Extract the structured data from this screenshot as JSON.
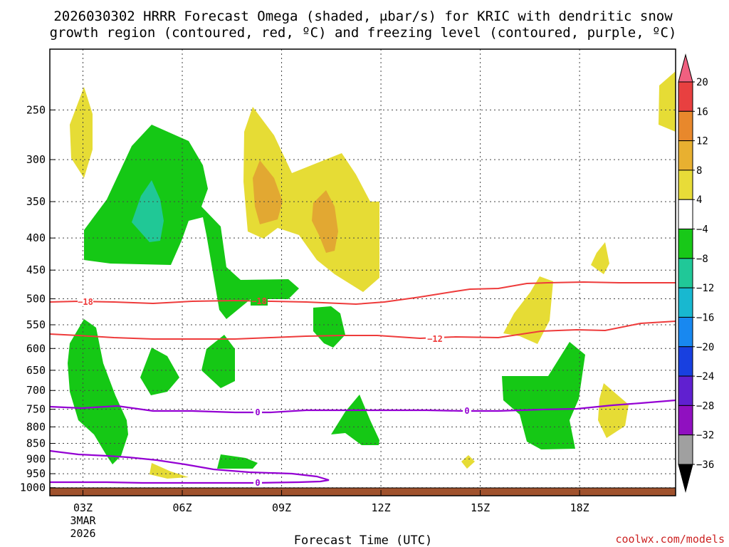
{
  "chart_data": {
    "type": "contour",
    "title_line1": "2026030302 HRRR Forecast Omega (shaded, μbar/s) for KRIC with dendritic snow",
    "title_line2": "growth region (contoured, red, ºC) and freezing level (contoured, purple, ºC)",
    "xlabel": "Forecast Time (UTC)",
    "credit": "coolwx.com/models",
    "x_ticks": [
      {
        "hour": 3,
        "label": "03Z",
        "sub1": "3MAR",
        "sub2": "2026"
      },
      {
        "hour": 6,
        "label": "06Z"
      },
      {
        "hour": 9,
        "label": "09Z"
      },
      {
        "hour": 12,
        "label": "12Z"
      },
      {
        "hour": 15,
        "label": "15Z"
      },
      {
        "hour": 18,
        "label": "18Z"
      }
    ],
    "y_ticks": [
      "250",
      "300",
      "350",
      "400",
      "450",
      "500",
      "550",
      "600",
      "650",
      "700",
      "750",
      "800",
      "850",
      "900",
      "950",
      "1000"
    ],
    "y_values": [
      250,
      300,
      350,
      400,
      450,
      500,
      550,
      600,
      650,
      700,
      750,
      800,
      850,
      900,
      950,
      1000
    ],
    "y_range": [
      200,
      1030
    ],
    "x_range": [
      2.0,
      20.9
    ],
    "colorbar": {
      "labels": [
        "20",
        "16",
        "12",
        "8",
        "4",
        "−4",
        "−8",
        "−12",
        "−16",
        "−20",
        "−24",
        "−28",
        "−32",
        "−36"
      ],
      "colors": [
        "#f06080",
        "#e84040",
        "#e8882c",
        "#e8b030",
        "#e8dc38",
        "#ffffff",
        "#18c818",
        "#20c898",
        "#18b8d0",
        "#1888f0",
        "#1840e0",
        "#6020d0",
        "#9010c0",
        "#a0a0a0",
        "#000000"
      ]
    },
    "contour_labels": {
      "red_18": "−18",
      "red_12": "−12",
      "purple_0": "0"
    },
    "ground_color": "#a0522d",
    "red_contour_color": "#ee3b3b",
    "purple_contour_color": "#9400d3"
  }
}
